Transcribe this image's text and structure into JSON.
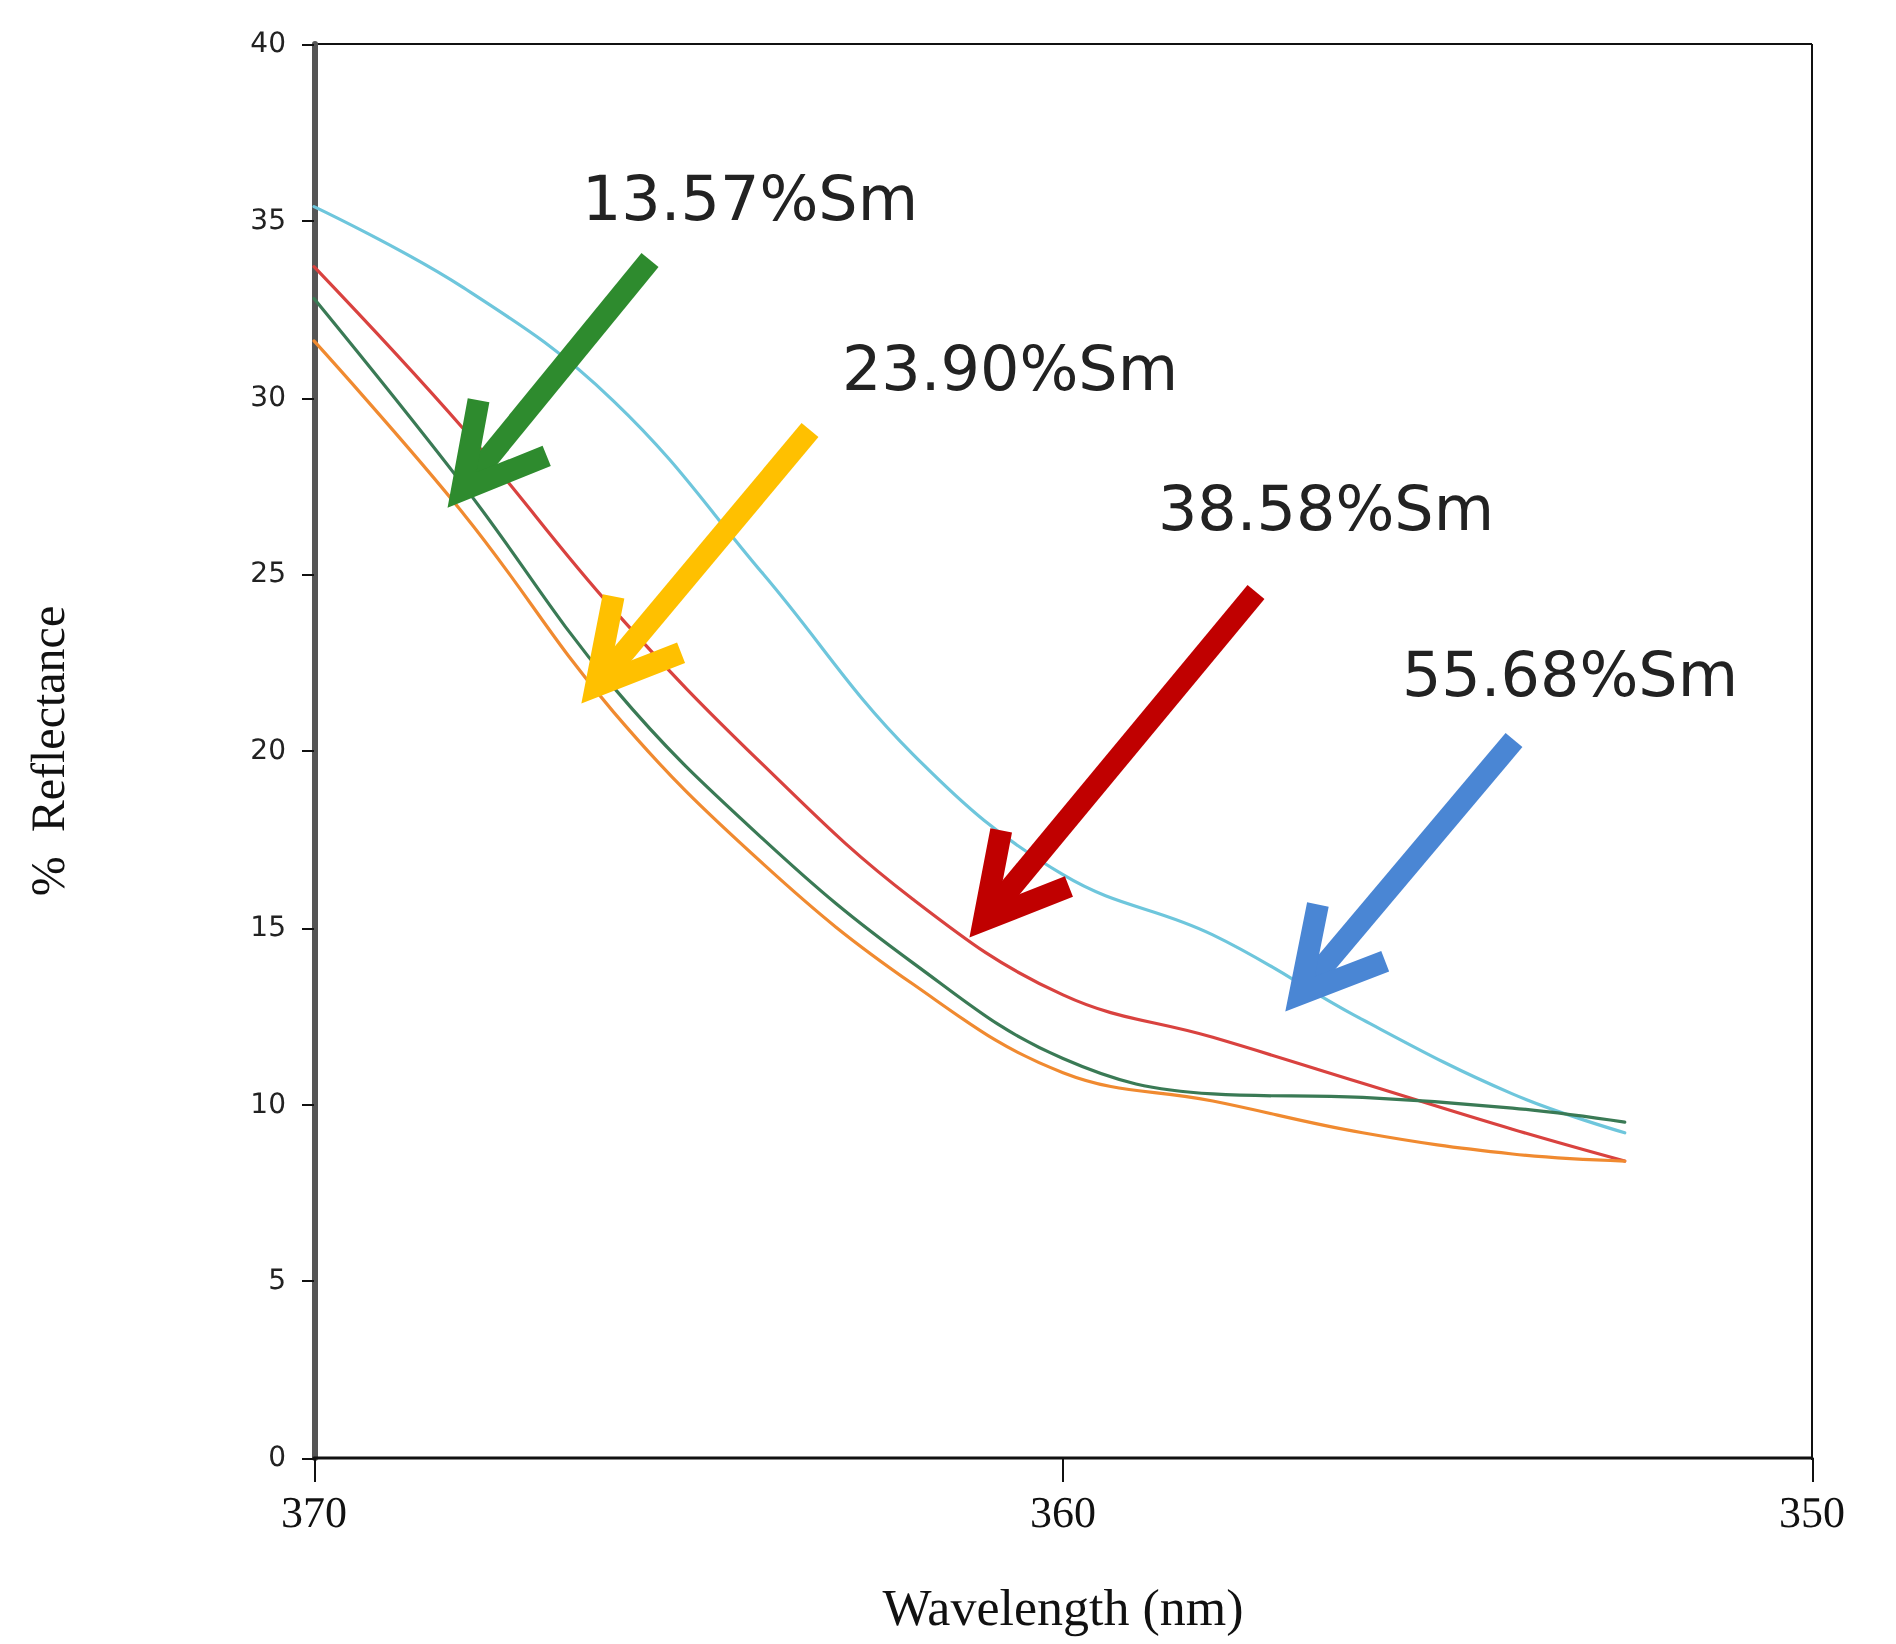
{
  "chart_data": {
    "type": "line",
    "xlabel": "Wavelength (nm)",
    "ylabel": "%  Reflectance",
    "x": [
      370,
      368,
      366,
      364,
      362,
      360,
      358,
      356,
      354,
      352.5
    ],
    "series": [
      {
        "color": "#6ec6dc",
        "values": [
          35.4,
          33.1,
          29.9,
          25.0,
          19.9,
          16.5,
          14.8,
          12.4,
          10.3,
          9.2
        ]
      },
      {
        "color": "#d9423f",
        "values": [
          33.7,
          29.1,
          24.0,
          19.6,
          15.8,
          13.1,
          11.9,
          10.6,
          9.3,
          8.4
        ]
      },
      {
        "color": "#3a7a55",
        "values": [
          32.8,
          27.5,
          21.8,
          17.5,
          14.0,
          11.3,
          10.3,
          10.2,
          9.9,
          9.5
        ]
      },
      {
        "color": "#f08a30",
        "values": [
          31.6,
          26.7,
          21.1,
          16.8,
          13.4,
          10.9,
          10.1,
          9.2,
          8.6,
          8.4
        ]
      }
    ],
    "annotations": [
      "13.57%Sm",
      "23.90%Sm",
      "38.58%Sm",
      "55.68%Sm"
    ],
    "xlim": [
      370,
      350
    ],
    "xticks": [
      370,
      360,
      350
    ],
    "ylim": [
      0,
      40
    ],
    "yticks": [
      0,
      5,
      10,
      15,
      20,
      25,
      30,
      35,
      40
    ],
    "grid": false,
    "marker": "none",
    "line_style": "solid"
  }
}
